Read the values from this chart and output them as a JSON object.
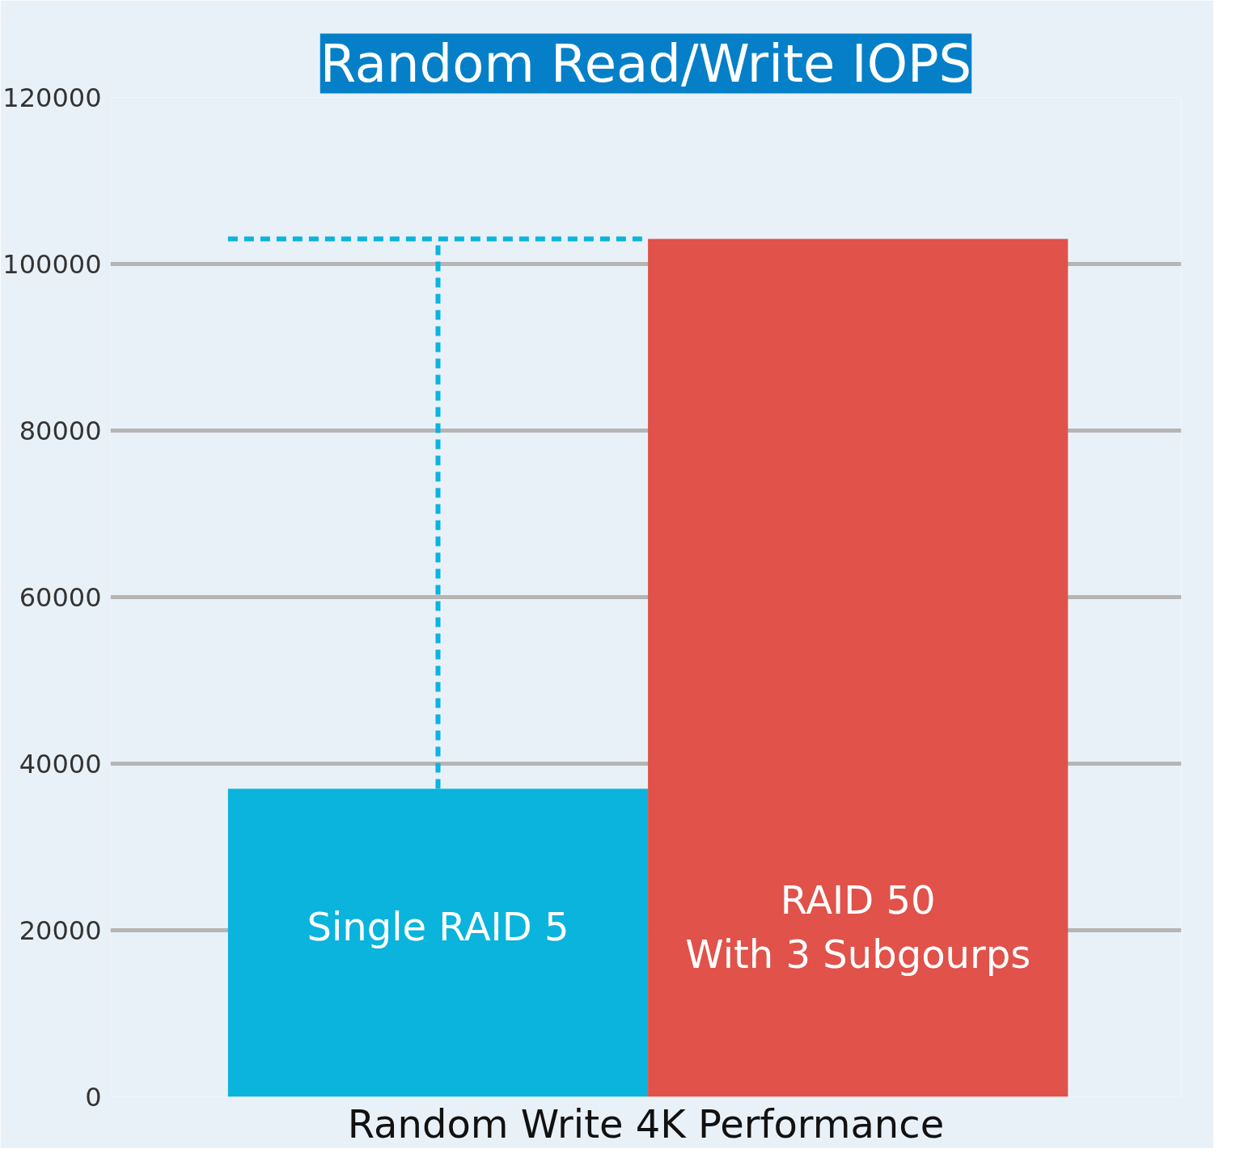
{
  "chart_data": {
    "type": "bar",
    "title": "Random Read/Write IOPS",
    "xlabel": "Random Write 4K Performance",
    "categories": [
      "Single RAID 5",
      "RAID 50\nWith 3 Subgourps"
    ],
    "values": [
      37000,
      103000
    ],
    "colors": [
      "#0ab4dc",
      "#e0524a"
    ],
    "ylim": [
      0,
      120000
    ],
    "yticks": [
      0,
      20000,
      40000,
      60000,
      80000,
      100000,
      120000
    ],
    "grid": "y",
    "ref_lines": [
      {
        "axis": "y",
        "value": 103000,
        "color": "#0ab4dc",
        "line_style": "dashed"
      },
      {
        "axis": "x",
        "value": "Single RAID 5",
        "color": "#0ab4dc",
        "line_style": "dashed"
      }
    ]
  }
}
